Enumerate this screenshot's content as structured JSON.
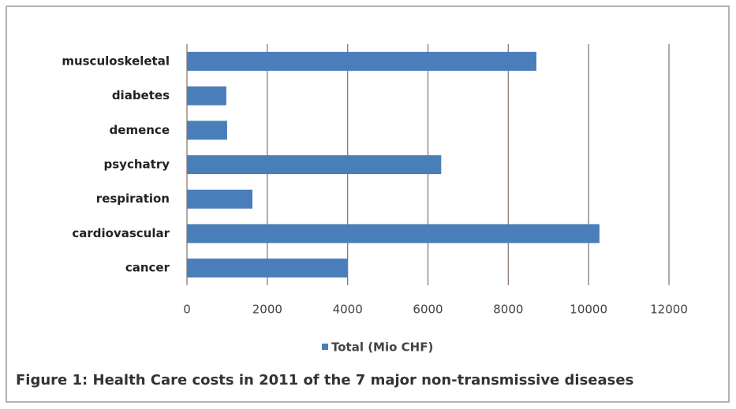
{
  "chart_data": {
    "type": "bar",
    "orientation": "horizontal",
    "categories": [
      "musculoskeletal",
      "diabetes",
      "demence",
      "psychatry",
      "respiration",
      "cardiovascular",
      "cancer"
    ],
    "series": [
      {
        "name": "Total (Mio CHF)",
        "color": "#4a7ebb",
        "values": [
          8700,
          980,
          1000,
          6330,
          1630,
          10270,
          3990
        ]
      }
    ],
    "xlim": [
      0,
      12000
    ],
    "xticks": [
      0,
      2000,
      4000,
      6000,
      8000,
      10000,
      12000
    ],
    "grid": true,
    "legend": "bottom",
    "caption": "Figure 1: Health Care costs in 2011 of the 7 major non-transmissive diseases"
  }
}
